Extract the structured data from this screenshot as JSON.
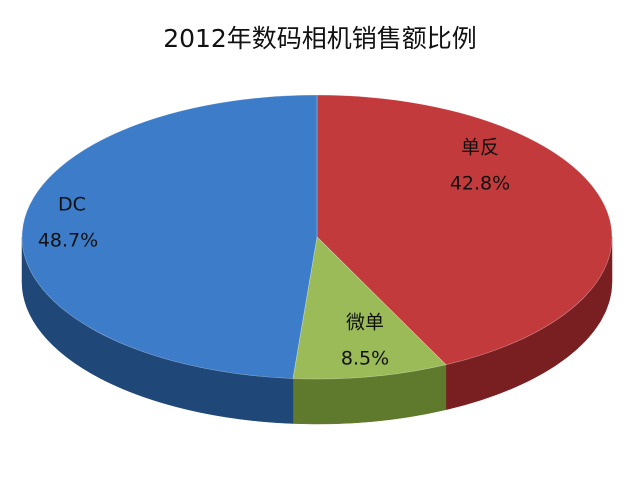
{
  "chart_data": {
    "type": "pie3d",
    "title": "2012年数码相机销售额比例",
    "categories": [
      "单反",
      "微单",
      "DC"
    ],
    "values": [
      42.8,
      8.5,
      48.7
    ],
    "value_labels": [
      "42.8%",
      "8.5%",
      "48.7%"
    ],
    "colors": [
      "#c33a3c",
      "#9bbb59",
      "#3d7cc9"
    ],
    "side_colors": [
      "#7a1f21",
      "#5f7a2c",
      "#1f4777"
    ]
  }
}
